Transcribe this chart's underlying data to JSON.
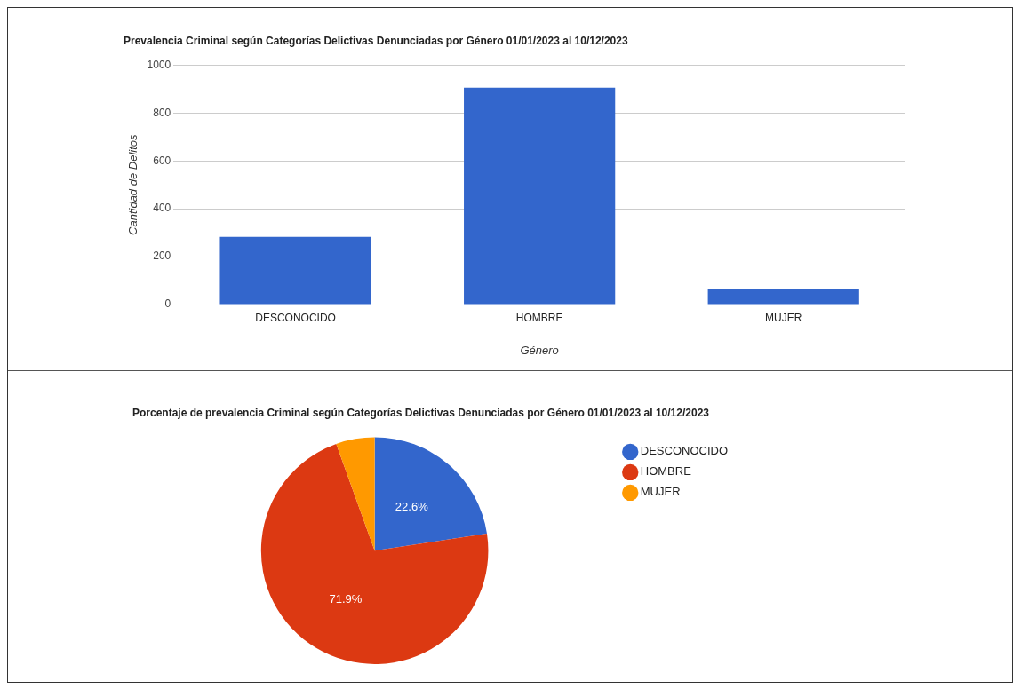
{
  "chart_data": [
    {
      "type": "bar",
      "title": "Prevalencia Criminal según Categorías Delictivas Denunciadas por Género 01/01/2023 al 10/12/2023",
      "xlabel": "Género",
      "ylabel": "Cantidad de Delitos",
      "categories": [
        "DESCONOCIDO",
        "HOMBRE",
        "MUJER"
      ],
      "values": [
        283,
        906,
        67
      ],
      "color": "#3366cc",
      "ylim": [
        0,
        1000
      ],
      "yticks": [
        0,
        200,
        400,
        600,
        800,
        1000
      ],
      "grid": "y",
      "legend": false
    },
    {
      "type": "pie",
      "title": "Porcentaje de prevalencia Criminal según Categorías Delictivas Denunciadas por Género 01/01/2023 al 10/12/2023",
      "categories": [
        "DESCONOCIDO",
        "HOMBRE",
        "MUJER"
      ],
      "values": [
        22.6,
        71.9,
        5.5
      ],
      "colors": [
        "#3366cc",
        "#dc3912",
        "#ff9900"
      ],
      "value_labels": [
        "22.6%",
        "71.9%",
        null
      ],
      "legend": "right"
    }
  ]
}
